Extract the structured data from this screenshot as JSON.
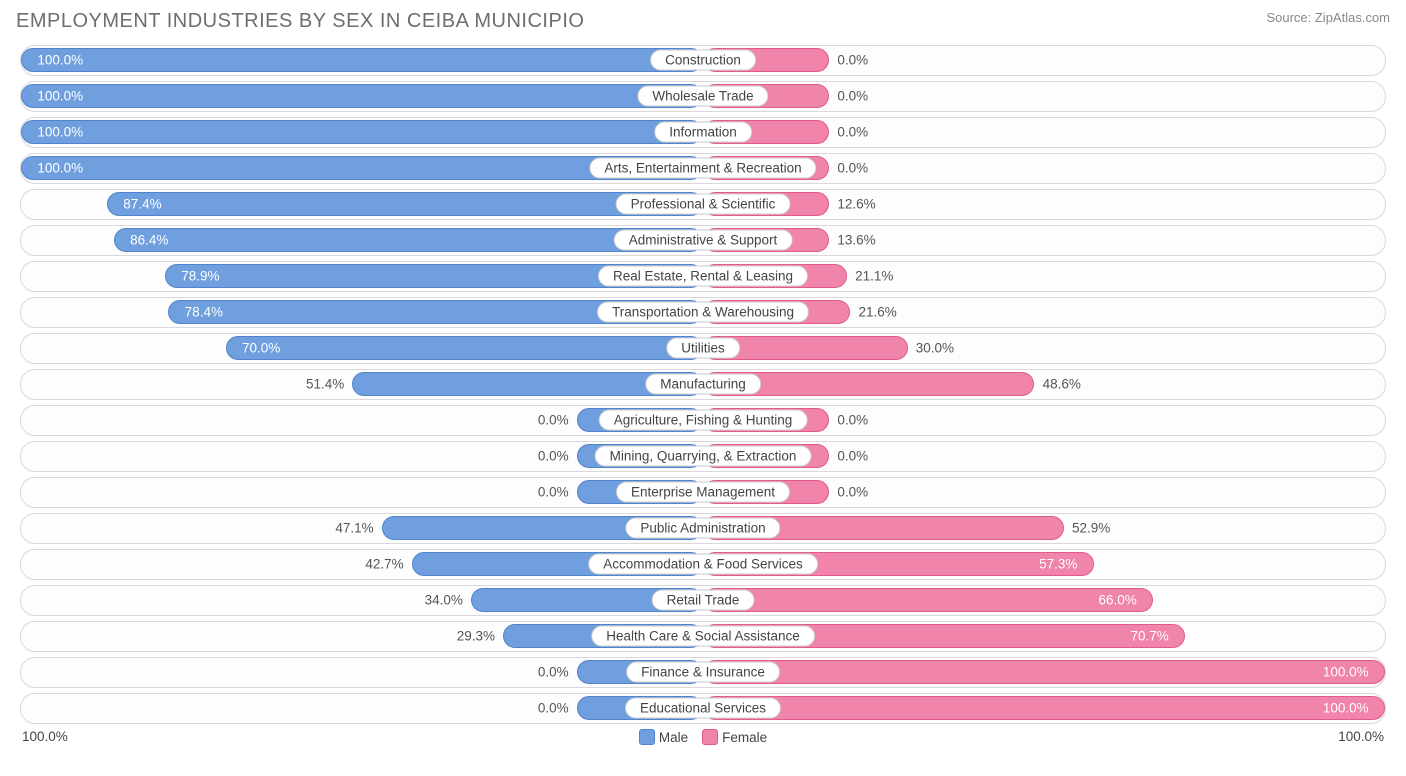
{
  "title": "EMPLOYMENT INDUSTRIES BY SEX IN CEIBA MUNICIPIO",
  "source": "Source: ZipAtlas.com",
  "colors": {
    "male_fill": "#6f9fde",
    "male_border": "#4f83cc",
    "female_fill": "#f084aa",
    "female_border": "#e15a8e",
    "title_color": "#6e6e6e",
    "source_color": "#888888",
    "inside_label": "#ffffff",
    "outside_label": "#555555",
    "row_border": "#d9d9d9"
  },
  "legend": {
    "male": "Male",
    "female": "Female"
  },
  "axis": {
    "left": "100.0%",
    "right": "100.0%"
  },
  "min_bar_pct": 18.5,
  "rows": [
    {
      "label": "Construction",
      "male": 100.0,
      "female": 0.0,
      "male_txt": "100.0%",
      "female_txt": "0.0%"
    },
    {
      "label": "Wholesale Trade",
      "male": 100.0,
      "female": 0.0,
      "male_txt": "100.0%",
      "female_txt": "0.0%"
    },
    {
      "label": "Information",
      "male": 100.0,
      "female": 0.0,
      "male_txt": "100.0%",
      "female_txt": "0.0%"
    },
    {
      "label": "Arts, Entertainment & Recreation",
      "male": 100.0,
      "female": 0.0,
      "male_txt": "100.0%",
      "female_txt": "0.0%"
    },
    {
      "label": "Professional & Scientific",
      "male": 87.4,
      "female": 12.6,
      "male_txt": "87.4%",
      "female_txt": "12.6%"
    },
    {
      "label": "Administrative & Support",
      "male": 86.4,
      "female": 13.6,
      "male_txt": "86.4%",
      "female_txt": "13.6%"
    },
    {
      "label": "Real Estate, Rental & Leasing",
      "male": 78.9,
      "female": 21.1,
      "male_txt": "78.9%",
      "female_txt": "21.1%"
    },
    {
      "label": "Transportation & Warehousing",
      "male": 78.4,
      "female": 21.6,
      "male_txt": "78.4%",
      "female_txt": "21.6%"
    },
    {
      "label": "Utilities",
      "male": 70.0,
      "female": 30.0,
      "male_txt": "70.0%",
      "female_txt": "30.0%"
    },
    {
      "label": "Manufacturing",
      "male": 51.4,
      "female": 48.6,
      "male_txt": "51.4%",
      "female_txt": "48.6%"
    },
    {
      "label": "Agriculture, Fishing & Hunting",
      "male": 0.0,
      "female": 0.0,
      "male_txt": "0.0%",
      "female_txt": "0.0%"
    },
    {
      "label": "Mining, Quarrying, & Extraction",
      "male": 0.0,
      "female": 0.0,
      "male_txt": "0.0%",
      "female_txt": "0.0%"
    },
    {
      "label": "Enterprise Management",
      "male": 0.0,
      "female": 0.0,
      "male_txt": "0.0%",
      "female_txt": "0.0%"
    },
    {
      "label": "Public Administration",
      "male": 47.1,
      "female": 52.9,
      "male_txt": "47.1%",
      "female_txt": "52.9%"
    },
    {
      "label": "Accommodation & Food Services",
      "male": 42.7,
      "female": 57.3,
      "male_txt": "42.7%",
      "female_txt": "57.3%"
    },
    {
      "label": "Retail Trade",
      "male": 34.0,
      "female": 66.0,
      "male_txt": "34.0%",
      "female_txt": "66.0%"
    },
    {
      "label": "Health Care & Social Assistance",
      "male": 29.3,
      "female": 70.7,
      "male_txt": "29.3%",
      "female_txt": "70.7%"
    },
    {
      "label": "Finance & Insurance",
      "male": 0.0,
      "female": 100.0,
      "male_txt": "0.0%",
      "female_txt": "100.0%"
    },
    {
      "label": "Educational Services",
      "male": 0.0,
      "female": 100.0,
      "male_txt": "0.0%",
      "female_txt": "100.0%"
    }
  ]
}
